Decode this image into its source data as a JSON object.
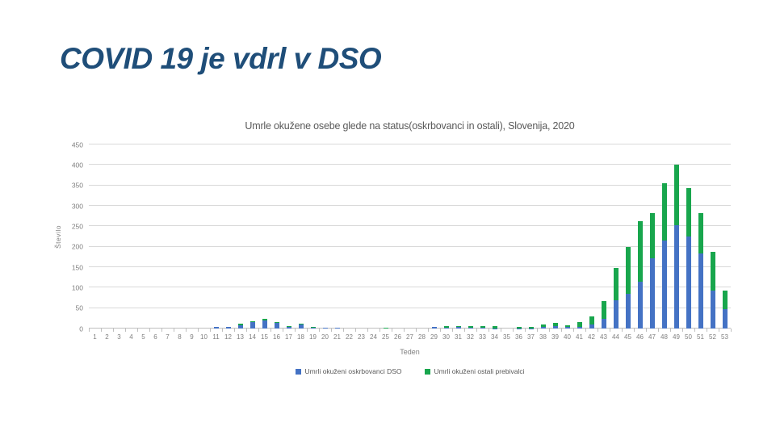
{
  "slide": {
    "title": "COVID 19 je vdrl v DSO"
  },
  "chart": {
    "title": "Umrle okužene osebe glede na status(oskrbovanci in ostali), Slovenija, 2020",
    "y_axis_title": "Število",
    "x_axis_title": "Teden",
    "colors": {
      "series_dso": "#4472C4",
      "series_ostali": "#18A64D",
      "gridline": "#D9D9D9",
      "axis_line": "#BFBFBF",
      "axis_text": "#7F7F7F",
      "title_text": "#595959",
      "slide_title_text": "#1F4E79"
    }
  },
  "chart_data": {
    "type": "bar",
    "stacked": true,
    "title": "Umrle okužene osebe glede na status(oskrbovanci in ostali), Slovenija, 2020",
    "xlabel": "Teden",
    "ylabel": "Število",
    "ylim": [
      0,
      450
    ],
    "yticks": [
      0,
      50,
      100,
      150,
      200,
      250,
      300,
      350,
      400,
      450
    ],
    "grid": true,
    "legend_position": "bottom",
    "categories": [
      1,
      2,
      3,
      4,
      5,
      6,
      7,
      8,
      9,
      10,
      11,
      12,
      13,
      14,
      15,
      16,
      17,
      18,
      19,
      20,
      21,
      22,
      23,
      24,
      25,
      26,
      27,
      28,
      29,
      30,
      31,
      32,
      33,
      34,
      35,
      36,
      37,
      38,
      39,
      40,
      41,
      42,
      43,
      44,
      45,
      46,
      47,
      48,
      49,
      50,
      51,
      52,
      53
    ],
    "series": [
      {
        "name": "Umrli okuženi oskrbovanci DSO",
        "color": "#4472C4",
        "values": [
          0,
          0,
          0,
          0,
          0,
          0,
          0,
          0,
          0,
          0,
          4,
          4,
          8,
          15,
          19,
          14,
          4,
          10,
          2,
          2,
          2,
          0,
          0,
          0,
          0,
          0,
          0,
          0,
          3,
          2,
          3,
          2,
          2,
          1,
          0,
          1,
          1,
          4,
          5,
          4,
          3,
          10,
          23,
          70,
          85,
          114,
          171,
          215,
          253,
          225,
          184,
          93,
          48
        ]
      },
      {
        "name": "Umrli okuženi ostali prebivalci",
        "color": "#18A64D",
        "values": [
          0,
          0,
          0,
          0,
          0,
          0,
          0,
          0,
          0,
          0,
          0,
          0,
          3,
          3,
          5,
          2,
          2,
          2,
          2,
          0,
          0,
          0,
          0,
          0,
          2,
          0,
          0,
          0,
          0,
          4,
          3,
          4,
          3,
          4,
          0,
          3,
          3,
          5,
          8,
          4,
          12,
          19,
          45,
          78,
          115,
          148,
          111,
          141,
          147,
          118,
          99,
          94,
          45
        ]
      }
    ]
  }
}
